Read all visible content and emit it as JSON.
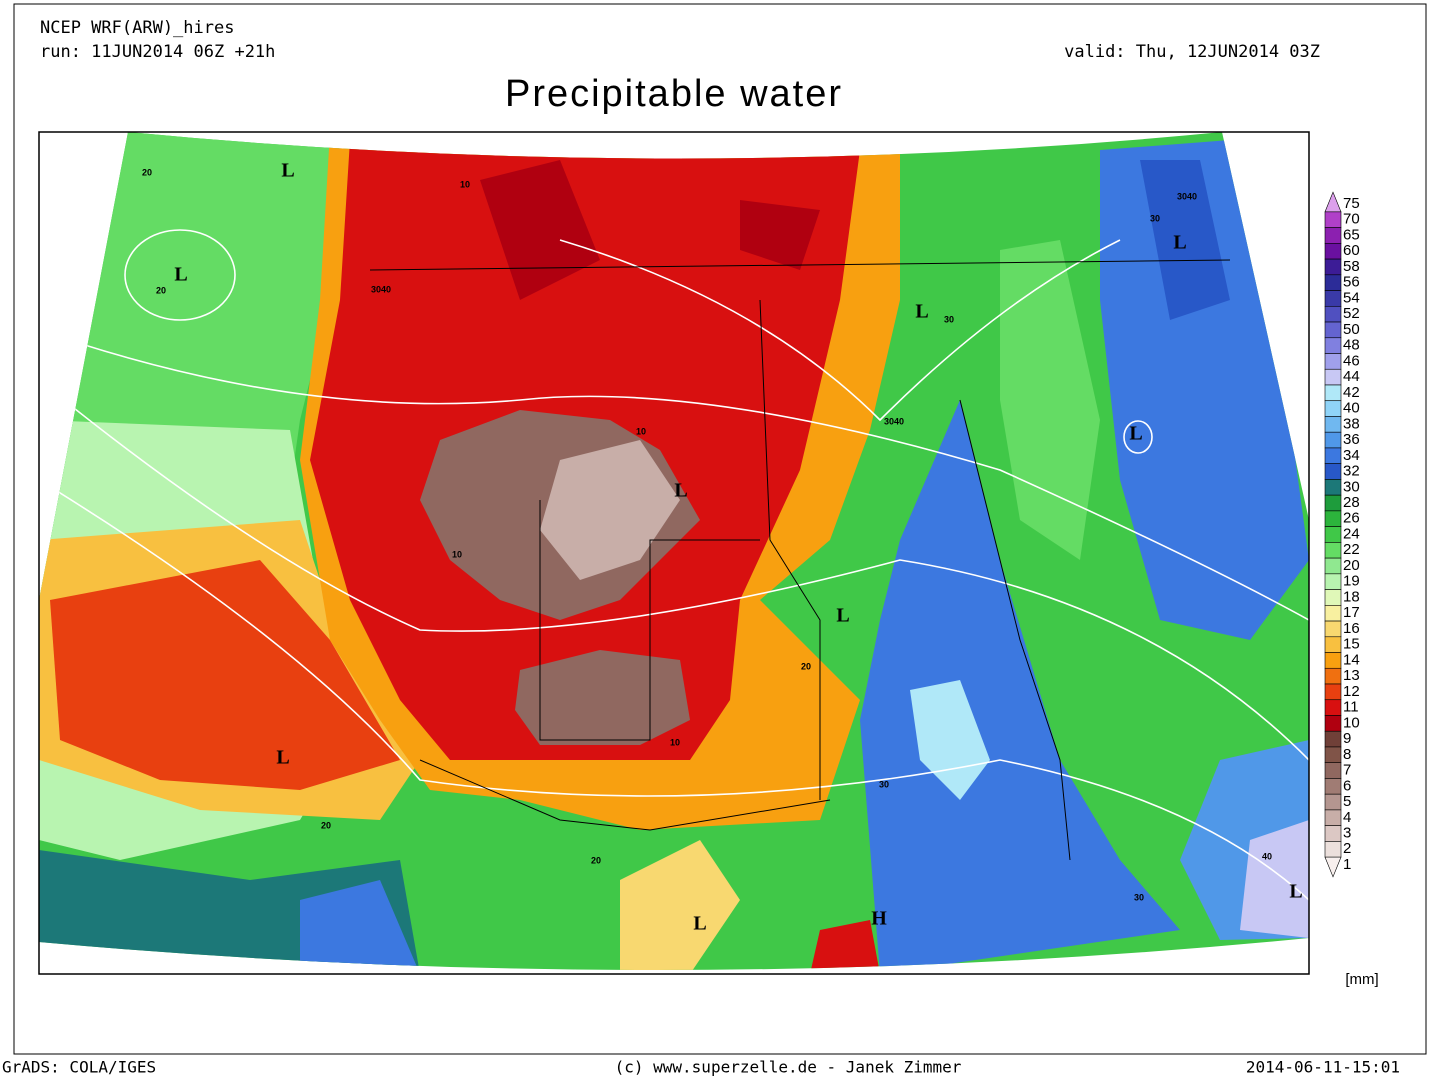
{
  "header": {
    "model": "NCEP WRF(ARW)_hires",
    "run": "run: 11JUN2014 06Z +21h",
    "valid": "valid: Thu, 12JUN2014 03Z",
    "title": "Precipitable water"
  },
  "colorbar": {
    "unit": "[mm]",
    "levels": [
      {
        "label": "75",
        "color": "#dca0ec"
      },
      {
        "label": "70",
        "color": "#b040c8"
      },
      {
        "label": "65",
        "color": "#8c20b0"
      },
      {
        "label": "60",
        "color": "#6a10a0"
      },
      {
        "label": "58",
        "color": "#3c1c96"
      },
      {
        "label": "56",
        "color": "#2c2c98"
      },
      {
        "label": "54",
        "color": "#3a3aa8"
      },
      {
        "label": "52",
        "color": "#5050c0"
      },
      {
        "label": "50",
        "color": "#6464d0"
      },
      {
        "label": "48",
        "color": "#8080e0"
      },
      {
        "label": "46",
        "color": "#a0a0ec"
      },
      {
        "label": "44",
        "color": "#c8c8f4"
      },
      {
        "label": "42",
        "color": "#b0e8f8"
      },
      {
        "label": "40",
        "color": "#90d4f8"
      },
      {
        "label": "38",
        "color": "#70b8f0"
      },
      {
        "label": "36",
        "color": "#5098e8"
      },
      {
        "label": "34",
        "color": "#3c78e0"
      },
      {
        "label": "32",
        "color": "#2858c8"
      },
      {
        "label": "30",
        "color": "#1c7878"
      },
      {
        "label": "28",
        "color": "#1e9c3c"
      },
      {
        "label": "26",
        "color": "#2cb43c"
      },
      {
        "label": "24",
        "color": "#40c848"
      },
      {
        "label": "22",
        "color": "#64dc64"
      },
      {
        "label": "20",
        "color": "#90e890"
      },
      {
        "label": "19",
        "color": "#b8f4b0"
      },
      {
        "label": "18",
        "color": "#e0f8b8"
      },
      {
        "label": "17",
        "color": "#f8f0a0"
      },
      {
        "label": "16",
        "color": "#f8d870"
      },
      {
        "label": "15",
        "color": "#f8c040"
      },
      {
        "label": "14",
        "color": "#f8a010"
      },
      {
        "label": "13",
        "color": "#f07010"
      },
      {
        "label": "12",
        "color": "#e84010"
      },
      {
        "label": "11",
        "color": "#d81010"
      },
      {
        "label": "10",
        "color": "#b00010"
      },
      {
        "label": "9",
        "color": "#704038"
      },
      {
        "label": "8",
        "color": "#805448"
      },
      {
        "label": "7",
        "color": "#906860"
      },
      {
        "label": "6",
        "color": "#a07c74"
      },
      {
        "label": "5",
        "color": "#b49690"
      },
      {
        "label": "4",
        "color": "#c8aea8"
      },
      {
        "label": "3",
        "color": "#dcc8c4"
      },
      {
        "label": "2",
        "color": "#ece0dc"
      },
      {
        "label": "1",
        "color": "#f8f0ee"
      }
    ]
  },
  "map": {
    "labels": [
      "L",
      "L",
      "L",
      "L",
      "L",
      "L",
      "L",
      "L",
      "L",
      "H",
      "L",
      "3040",
      "3040",
      "3040",
      "20",
      "20",
      "20",
      "10",
      "10",
      "10",
      "10",
      "30",
      "30",
      "30",
      "30",
      "20",
      "20",
      "40"
    ]
  },
  "footer": {
    "left": "GrADS: COLA/IGES",
    "center": "(c) www.superzelle.de - Janek Zimmer",
    "right": "2014-06-11-15:01"
  }
}
